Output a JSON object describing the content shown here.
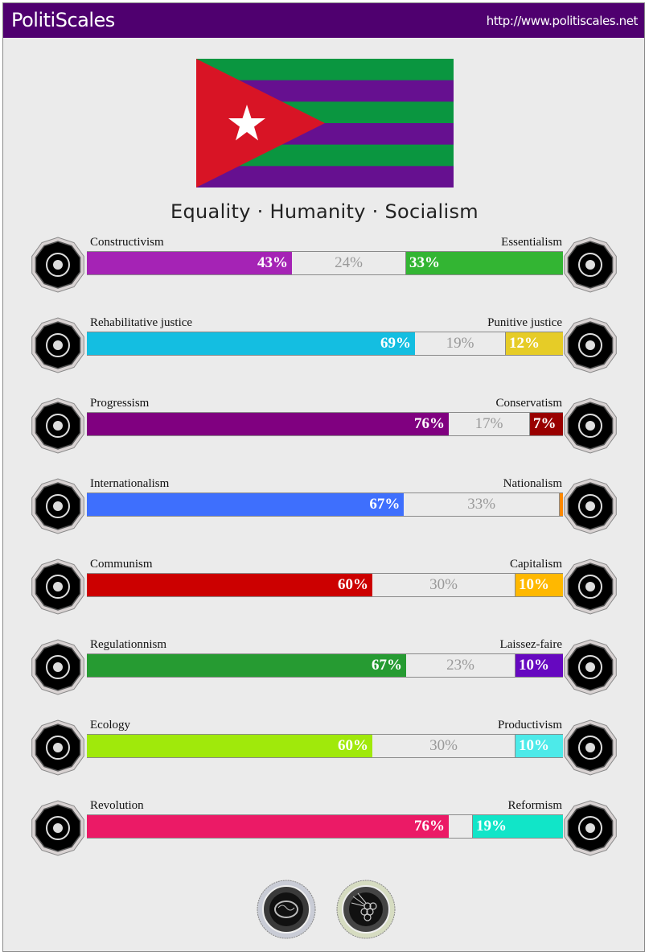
{
  "header": {
    "brand": "PolitiScales",
    "url": "http://www.politiscales.net",
    "background": "#4f006f"
  },
  "flag": {
    "stripes": [
      "#0a9640",
      "#661090",
      "#0a9640",
      "#661090",
      "#0a9640",
      "#661090"
    ],
    "triangle_color": "#d81425",
    "star_color": "#ffffff",
    "icon": "star-icon"
  },
  "motto": "Equality · Humanity · Socialism",
  "axes": [
    {
      "left_label": "Constructivism",
      "right_label": "Essentialism",
      "left_pct": 43,
      "mid_pct": 24,
      "right_pct": 33,
      "left_text": "43%",
      "mid_text": "24%",
      "right_text": "33%",
      "left_color": "#a523b5",
      "right_color": "#33b533",
      "left_icon": "eye-icon",
      "right_icon": "flower-icon"
    },
    {
      "left_label": "Rehabilitative justice",
      "right_label": "Punitive justice",
      "left_pct": 69,
      "mid_pct": 19,
      "right_pct": 12,
      "left_text": "69%",
      "mid_text": "19%",
      "right_text": "12%",
      "left_color": "#14bee1",
      "right_color": "#e6cc27",
      "left_icon": "handshake-icon",
      "right_icon": "prison-bars-icon"
    },
    {
      "left_label": "Progressism",
      "right_label": "Conservatism",
      "left_pct": 76,
      "mid_pct": 17,
      "right_pct": 7,
      "left_text": "76%",
      "mid_text": "17%",
      "right_text": "7%",
      "left_color": "#800080",
      "right_color": "#990000",
      "left_icon": "rocket-icon",
      "right_icon": "quill-pen-icon"
    },
    {
      "left_label": "Internationalism",
      "right_label": "Nationalism",
      "left_pct": 67,
      "mid_pct": 33,
      "right_pct": 0,
      "left_text": "67%",
      "mid_text": "33%",
      "right_text": "",
      "left_color": "#3e6ffd",
      "right_color": "#ff8800",
      "left_icon": "globe-laurel-icon",
      "right_icon": "waving-flag-icon"
    },
    {
      "left_label": "Communism",
      "right_label": "Capitalism",
      "left_pct": 60,
      "mid_pct": 30,
      "right_pct": 10,
      "left_text": "60%",
      "mid_text": "30%",
      "right_text": "10%",
      "left_color": "#cc0000",
      "right_color": "#ffb800",
      "left_icon": "hammer-sickle-icon",
      "right_icon": "money-bag-icon"
    },
    {
      "left_label": "Regulationnism",
      "right_label": "Laissez-faire",
      "left_pct": 67,
      "mid_pct": 23,
      "right_pct": 10,
      "left_text": "67%",
      "mid_text": "23%",
      "right_text": "10%",
      "left_color": "#269b32",
      "right_color": "#6608c0",
      "left_icon": "ruler-magnifier-icon",
      "right_icon": "butterfly-icon"
    },
    {
      "left_label": "Ecology",
      "right_label": "Productivism",
      "left_pct": 60,
      "mid_pct": 30,
      "right_pct": 10,
      "left_text": "60%",
      "mid_text": "30%",
      "right_text": "10%",
      "left_color": "#a0e90b",
      "right_color": "#4deae9",
      "left_icon": "sprout-icon",
      "right_icon": "gear-icon"
    },
    {
      "left_label": "Revolution",
      "right_label": "Reformism",
      "left_pct": 76,
      "mid_pct": 5,
      "right_pct": 19,
      "left_text": "76%",
      "mid_text": "",
      "right_text": "19%",
      "left_color": "#eb1a66",
      "right_color": "#11e5c8",
      "left_icon": "raised-fist-icon",
      "right_icon": "sailboat-icon"
    }
  ],
  "seals": [
    {
      "icon": "brain-seal-icon",
      "color": "#c9ccd6"
    },
    {
      "icon": "grapes-seal-icon",
      "color": "#d6dcc1"
    }
  ]
}
